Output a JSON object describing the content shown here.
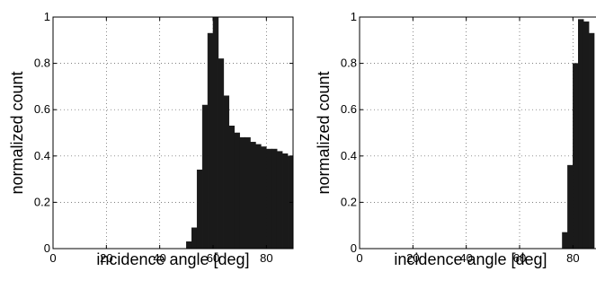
{
  "chart_data": [
    {
      "type": "bar",
      "xlabel": "incidence angle [deg]",
      "ylabel": "normalized count",
      "xlim": [
        0,
        90
      ],
      "ylim": [
        0,
        1
      ],
      "xticks": [
        "0",
        "20",
        "40",
        "60",
        "80"
      ],
      "yticks": [
        "0",
        "0.2",
        "0.4",
        "0.6",
        "0.8",
        "1"
      ],
      "grid": true,
      "bin_width": 2,
      "bins": [
        {
          "x": 51,
          "y": 0.03
        },
        {
          "x": 53,
          "y": 0.09
        },
        {
          "x": 55,
          "y": 0.34
        },
        {
          "x": 57,
          "y": 0.62
        },
        {
          "x": 59,
          "y": 0.93
        },
        {
          "x": 61,
          "y": 1.0
        },
        {
          "x": 63,
          "y": 0.82
        },
        {
          "x": 65,
          "y": 0.66
        },
        {
          "x": 67,
          "y": 0.53
        },
        {
          "x": 69,
          "y": 0.5
        },
        {
          "x": 71,
          "y": 0.48
        },
        {
          "x": 73,
          "y": 0.48
        },
        {
          "x": 75,
          "y": 0.46
        },
        {
          "x": 77,
          "y": 0.45
        },
        {
          "x": 79,
          "y": 0.44
        },
        {
          "x": 81,
          "y": 0.43
        },
        {
          "x": 83,
          "y": 0.43
        },
        {
          "x": 85,
          "y": 0.42
        },
        {
          "x": 87,
          "y": 0.41
        },
        {
          "x": 89,
          "y": 0.4
        }
      ]
    },
    {
      "type": "bar",
      "xlabel": "incidence angle [deg]",
      "ylabel": "normalized count",
      "xlim": [
        0,
        90
      ],
      "ylim": [
        0,
        1
      ],
      "xticks": [
        "0",
        "20",
        "40",
        "60",
        "80"
      ],
      "yticks": [
        "0",
        "0.2",
        "0.4",
        "0.6",
        "0.8",
        "1"
      ],
      "grid": true,
      "bin_width": 2,
      "bins": [
        {
          "x": 77,
          "y": 0.07
        },
        {
          "x": 79,
          "y": 0.36
        },
        {
          "x": 81,
          "y": 0.8
        },
        {
          "x": 83,
          "y": 0.99
        },
        {
          "x": 85,
          "y": 0.98
        },
        {
          "x": 87,
          "y": 0.93
        }
      ]
    }
  ]
}
